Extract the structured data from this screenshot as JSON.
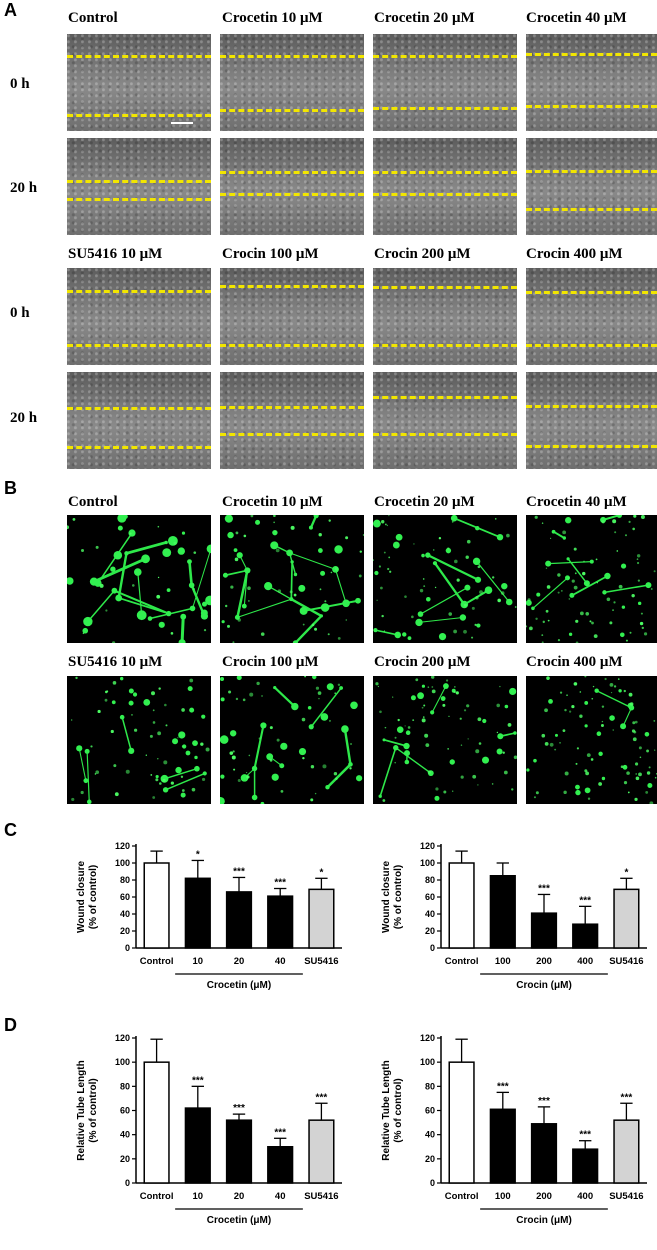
{
  "panel_labels": {
    "a": "A",
    "b": "B",
    "c": "C",
    "d": "D"
  },
  "panel_a": {
    "top_titles": [
      "Control",
      "Crocetin 10 μM",
      "Crocetin 20 μM",
      "Crocetin 40 μM"
    ],
    "bottom_titles": [
      "SU5416 10 μM",
      "Crocin 100 μM",
      "Crocin 200 μM",
      "Crocin 400 μM"
    ],
    "rows": [
      "0 h",
      "20 h",
      "0 h",
      "20 h"
    ]
  },
  "panel_b": {
    "top_titles": [
      "Control",
      "Crocetin 10 μM",
      "Crocetin 20 μM",
      "Crocetin 40 μM"
    ],
    "bottom_titles": [
      "SU5416 10 μM",
      "Crocin 100 μM",
      "Crocin 200 μM",
      "Crocin 400 μM"
    ]
  },
  "chart_data": [
    {
      "type": "bar",
      "panel": "C",
      "ylabel": "Wound closure\n(% of control)",
      "ylim": [
        0,
        120
      ],
      "yticks": [
        0,
        20,
        40,
        60,
        80,
        100,
        120
      ],
      "categories": [
        "Control",
        "10",
        "20",
        "40",
        "SU5416"
      ],
      "values": [
        100,
        82,
        66,
        61,
        69
      ],
      "errors": [
        14,
        21,
        17,
        9,
        13
      ],
      "significance": [
        "",
        "*",
        "***",
        "***",
        "*"
      ],
      "fills": [
        "#ffffff",
        "#000000",
        "#000000",
        "#000000",
        "#d3d3d3"
      ],
      "group_label": "Crocetin (μM)"
    },
    {
      "type": "bar",
      "panel": "C",
      "ylabel": "Wound closure\n(% of control)",
      "ylim": [
        0,
        120
      ],
      "yticks": [
        0,
        20,
        40,
        60,
        80,
        100,
        120
      ],
      "categories": [
        "Control",
        "100",
        "200",
        "400",
        "SU5416"
      ],
      "values": [
        100,
        85,
        41,
        28,
        69
      ],
      "errors": [
        14,
        15,
        22,
        21,
        13
      ],
      "significance": [
        "",
        "",
        "***",
        "***",
        "*"
      ],
      "fills": [
        "#ffffff",
        "#000000",
        "#000000",
        "#000000",
        "#d3d3d3"
      ],
      "group_label": "Crocin (μM)"
    },
    {
      "type": "bar",
      "panel": "D",
      "ylabel": "Relative Tube Length\n(% of control)",
      "ylim": [
        0,
        120
      ],
      "yticks": [
        0,
        20,
        40,
        60,
        80,
        100,
        120
      ],
      "categories": [
        "Control",
        "10",
        "20",
        "40",
        "SU5416"
      ],
      "values": [
        100,
        62,
        52,
        30,
        52
      ],
      "errors": [
        19,
        18,
        5,
        7,
        14
      ],
      "significance": [
        "",
        "***",
        "***",
        "***",
        "***"
      ],
      "fills": [
        "#ffffff",
        "#000000",
        "#000000",
        "#000000",
        "#d3d3d3"
      ],
      "group_label": "Crocetin (μM)"
    },
    {
      "type": "bar",
      "panel": "D",
      "ylabel": "Relative Tube Length\n(% of control)",
      "ylim": [
        0,
        120
      ],
      "yticks": [
        0,
        20,
        40,
        60,
        80,
        100,
        120
      ],
      "categories": [
        "Control",
        "100",
        "200",
        "400",
        "SU5416"
      ],
      "values": [
        100,
        61,
        49,
        28,
        52
      ],
      "errors": [
        19,
        14,
        14,
        7,
        14
      ],
      "significance": [
        "",
        "***",
        "***",
        "***",
        "***"
      ],
      "fills": [
        "#ffffff",
        "#000000",
        "#000000",
        "#000000",
        "#d3d3d3"
      ],
      "group_label": "Crocin (μM)"
    }
  ]
}
